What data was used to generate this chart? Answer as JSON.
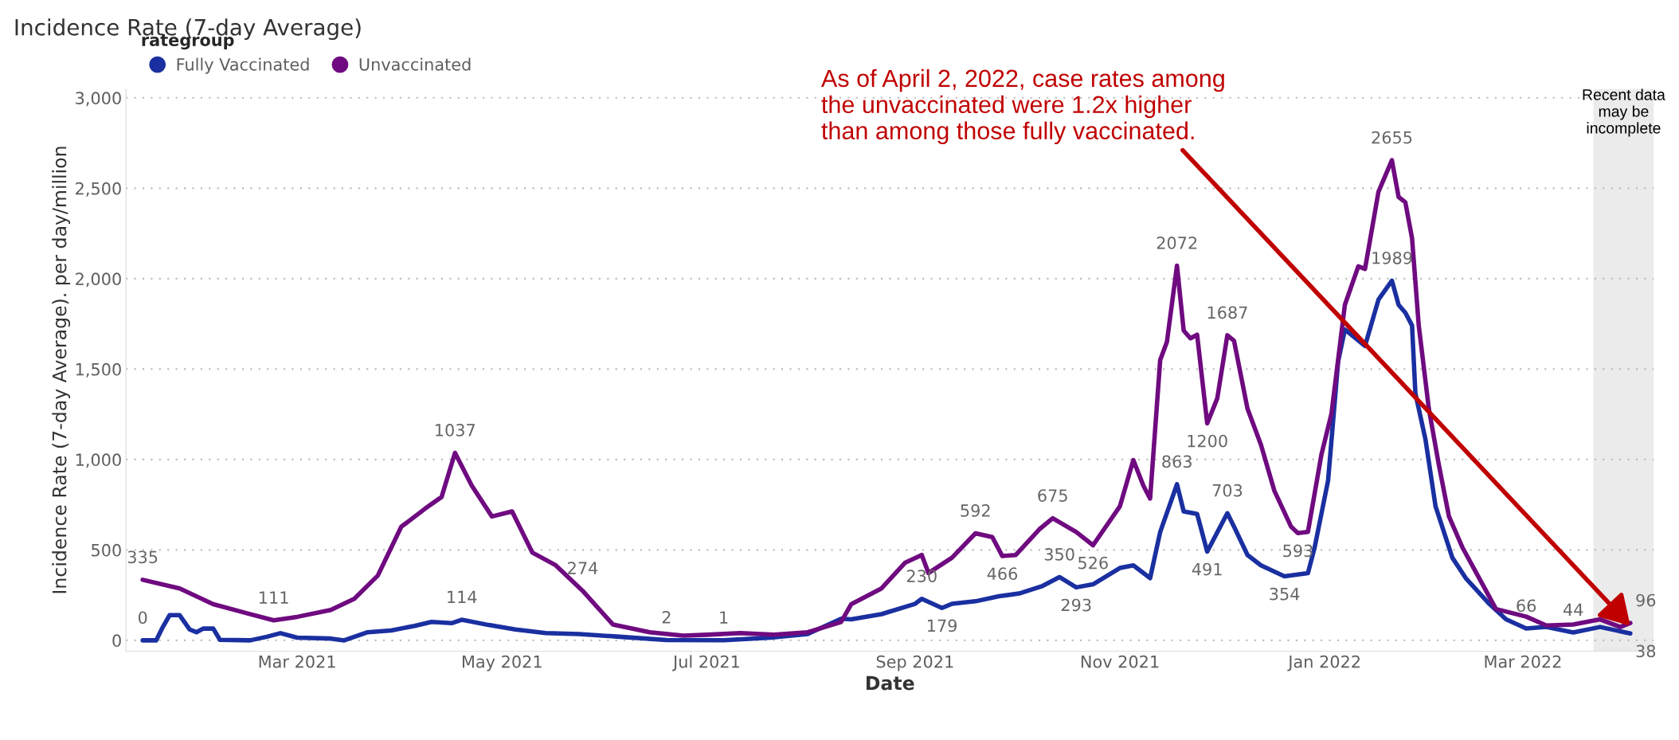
{
  "chart_data": {
    "type": "line",
    "title": "Incidence Rate (7-day Average)",
    "xlabel": "Date",
    "ylabel": "Incidence Rate (7-day Average). per day/million",
    "legend_title": "rategroup",
    "legend": "top left",
    "grid": "y",
    "line_style": "solid",
    "xlim": [
      "2021-01-09",
      "2022-04-09"
    ],
    "ylim": [
      -60,
      3050
    ],
    "xticks": [
      {
        "value": "2021-03-01",
        "label": "Mar 2021"
      },
      {
        "value": "2021-05-01",
        "label": "May 2021"
      },
      {
        "value": "2021-07-01",
        "label": "Jul 2021"
      },
      {
        "value": "2021-09-01",
        "label": "Sep 2021"
      },
      {
        "value": "2021-11-01",
        "label": "Nov 2021"
      },
      {
        "value": "2022-01-01",
        "label": "Jan 2022"
      },
      {
        "value": "2022-03-01",
        "label": "Mar 2022"
      }
    ],
    "yticks": [
      0,
      {
        "value": 500,
        "label": "500"
      },
      {
        "value": 1000,
        "label": "1,000"
      },
      {
        "value": 1500,
        "label": "1,500"
      },
      {
        "value": 2000,
        "label": "2,000"
      },
      {
        "value": 2500,
        "label": "2,500"
      },
      {
        "value": 3000,
        "label": "3,000"
      }
    ],
    "bands": [
      {
        "axis": "x",
        "from": "2022-03-22",
        "to": "2022-04-09",
        "label": "Recent data\nmay be\nincomplete",
        "color": "#ebebeb"
      }
    ],
    "annotations": [
      {
        "text": "As of April 2, 2022, case rates among\nthe unvaccinated were 1.2x higher\nthan among those fully vaccinated.",
        "x": "2022-04-02",
        "y": 80
      }
    ],
    "series": [
      {
        "name": "Fully Vaccinated",
        "color": "#1a2fa0",
        "x": [
          "2021-01-14",
          "2021-01-18",
          "2021-01-20",
          "2021-01-22",
          "2021-01-25",
          "2021-01-28",
          "2021-01-30",
          "2021-02-01",
          "2021-02-04",
          "2021-02-06",
          "2021-02-15",
          "2021-02-20",
          "2021-02-24",
          "2021-03-01",
          "2021-03-11",
          "2021-03-15",
          "2021-03-22",
          "2021-03-29",
          "2021-04-05",
          "2021-04-10",
          "2021-04-16",
          "2021-04-19",
          "2021-04-27",
          "2021-05-05",
          "2021-05-14",
          "2021-05-24",
          "2021-06-05",
          "2021-06-19",
          "2021-07-06",
          "2021-07-20",
          "2021-07-31",
          "2021-08-10",
          "2021-08-13",
          "2021-08-22",
          "2021-09-01",
          "2021-09-03",
          "2021-09-09",
          "2021-09-12",
          "2021-09-19",
          "2021-09-26",
          "2021-10-02",
          "2021-10-09",
          "2021-10-14",
          "2021-10-19",
          "2021-10-24",
          "2021-11-01",
          "2021-11-05",
          "2021-11-10",
          "2021-11-13",
          "2021-11-18",
          "2021-11-20",
          "2021-11-24",
          "2021-11-27",
          "2021-12-03",
          "2021-12-05",
          "2021-12-09",
          "2021-12-13",
          "2021-12-20",
          "2021-12-27",
          "2021-12-29",
          "2022-01-02",
          "2022-01-05",
          "2022-01-07",
          "2022-01-13",
          "2022-01-17",
          "2022-01-21",
          "2022-01-23",
          "2022-01-25",
          "2022-01-27",
          "2022-01-28",
          "2022-01-31",
          "2022-02-03",
          "2022-02-08",
          "2022-02-12",
          "2022-02-19",
          "2022-02-24",
          "2022-03-02",
          "2022-03-08",
          "2022-03-16",
          "2022-03-24",
          "2022-04-02"
        ],
        "values": [
          0,
          0,
          74,
          139,
          139,
          60,
          45,
          65,
          65,
          3,
          0,
          20,
          40,
          15,
          10,
          0,
          45,
          55,
          80,
          102,
          95,
          114,
          85,
          60,
          40,
          35,
          20,
          2,
          1,
          15,
          35,
          120,
          116,
          145,
          202,
          230,
          179,
          202,
          216,
          244,
          259,
          301,
          350,
          293,
          310,
          400,
          415,
          344,
          599,
          863,
          713,
          699,
          491,
          703,
          628,
          472,
          415,
          354,
          372,
          514,
          884,
          1543,
          1719,
          1628,
          1884,
          1989,
          1855,
          1812,
          1741,
          1366,
          1111,
          741,
          457,
          344,
          202,
          116,
          66,
          74,
          44,
          74,
          38
        ],
        "value_labels": [
          "0",
          null,
          null,
          null,
          null,
          null,
          null,
          null,
          null,
          null,
          null,
          null,
          null,
          null,
          null,
          null,
          null,
          null,
          null,
          null,
          null,
          "114",
          null,
          null,
          null,
          null,
          null,
          "2",
          "1",
          null,
          null,
          null,
          null,
          null,
          null,
          "230",
          "179",
          null,
          null,
          null,
          null,
          null,
          "350",
          "293",
          null,
          null,
          null,
          null,
          null,
          "863",
          null,
          null,
          "491",
          "703",
          null,
          null,
          null,
          "354",
          null,
          null,
          null,
          null,
          null,
          null,
          null,
          "1989",
          null,
          null,
          null,
          null,
          null,
          null,
          null,
          null,
          null,
          null,
          "66",
          null,
          "44",
          null,
          "38"
        ]
      },
      {
        "name": "Unvaccinated",
        "color": "#6f0a80",
        "x": [
          "2021-01-14",
          "2021-01-25",
          "2021-02-04",
          "2021-02-14",
          "2021-02-22",
          "2021-03-01",
          "2021-03-11",
          "2021-03-18",
          "2021-03-25",
          "2021-04-01",
          "2021-04-08",
          "2021-04-13",
          "2021-04-17",
          "2021-04-22",
          "2021-04-28",
          "2021-05-04",
          "2021-05-10",
          "2021-05-17",
          "2021-05-25",
          "2021-06-03",
          "2021-06-14",
          "2021-06-24",
          "2021-07-01",
          "2021-07-11",
          "2021-07-21",
          "2021-07-31",
          "2021-08-10",
          "2021-08-13",
          "2021-08-22",
          "2021-08-29",
          "2021-09-03",
          "2021-09-05",
          "2021-09-12",
          "2021-09-19",
          "2021-09-24",
          "2021-09-27",
          "2021-10-01",
          "2021-10-08",
          "2021-10-12",
          "2021-10-19",
          "2021-10-24",
          "2021-11-01",
          "2021-11-05",
          "2021-11-08",
          "2021-11-10",
          "2021-11-13",
          "2021-11-15",
          "2021-11-18",
          "2021-11-20",
          "2021-11-22",
          "2021-11-24",
          "2021-11-27",
          "2021-11-30",
          "2021-12-03",
          "2021-12-05",
          "2021-12-09",
          "2021-12-13",
          "2021-12-17",
          "2021-12-22",
          "2021-12-24",
          "2021-12-27",
          "2021-12-31",
          "2022-01-03",
          "2022-01-07",
          "2022-01-11",
          "2022-01-13",
          "2022-01-17",
          "2022-01-21",
          "2022-01-23",
          "2022-01-25",
          "2022-01-27",
          "2022-01-29",
          "2022-02-01",
          "2022-02-04",
          "2022-02-07",
          "2022-02-11",
          "2022-02-16",
          "2022-02-21",
          "2022-03-02",
          "2022-03-08",
          "2022-03-16",
          "2022-03-24",
          "2022-03-30",
          "2022-04-02"
        ],
        "values": [
          335,
          287,
          200,
          150,
          111,
          130,
          168,
          230,
          358,
          628,
          727,
          793,
          1037,
          855,
          685,
          713,
          486,
          415,
          274,
          88,
          45,
          26,
          31,
          40,
          31,
          45,
          102,
          200,
          287,
          429,
          472,
          372,
          457,
          592,
          571,
          466,
          472,
          614,
          675,
          599,
          526,
          741,
          997,
          855,
          784,
          1550,
          1650,
          2072,
          1713,
          1670,
          1690,
          1200,
          1338,
          1687,
          1656,
          1281,
          1082,
          827,
          628,
          593,
          600,
          1026,
          1253,
          1855,
          2068,
          2054,
          2480,
          2655,
          2452,
          2423,
          2224,
          1741,
          1281,
          969,
          685,
          514,
          344,
          173,
          131,
          82,
          88,
          116,
          74,
          96
        ],
        "value_labels": [
          "335",
          null,
          null,
          null,
          "111",
          null,
          null,
          null,
          null,
          null,
          null,
          null,
          "1037",
          null,
          null,
          null,
          null,
          null,
          "274",
          null,
          null,
          null,
          null,
          null,
          null,
          null,
          null,
          null,
          null,
          null,
          null,
          null,
          null,
          "592",
          null,
          "466",
          null,
          null,
          "675",
          null,
          "526",
          null,
          null,
          null,
          null,
          null,
          null,
          "2072",
          null,
          null,
          null,
          "1200",
          null,
          "1687",
          null,
          null,
          null,
          null,
          null,
          "593",
          null,
          null,
          null,
          null,
          null,
          null,
          null,
          "2655",
          null,
          null,
          null,
          null,
          null,
          null,
          null,
          null,
          null,
          null,
          null,
          null,
          null,
          null,
          null,
          "96"
        ]
      }
    ]
  }
}
